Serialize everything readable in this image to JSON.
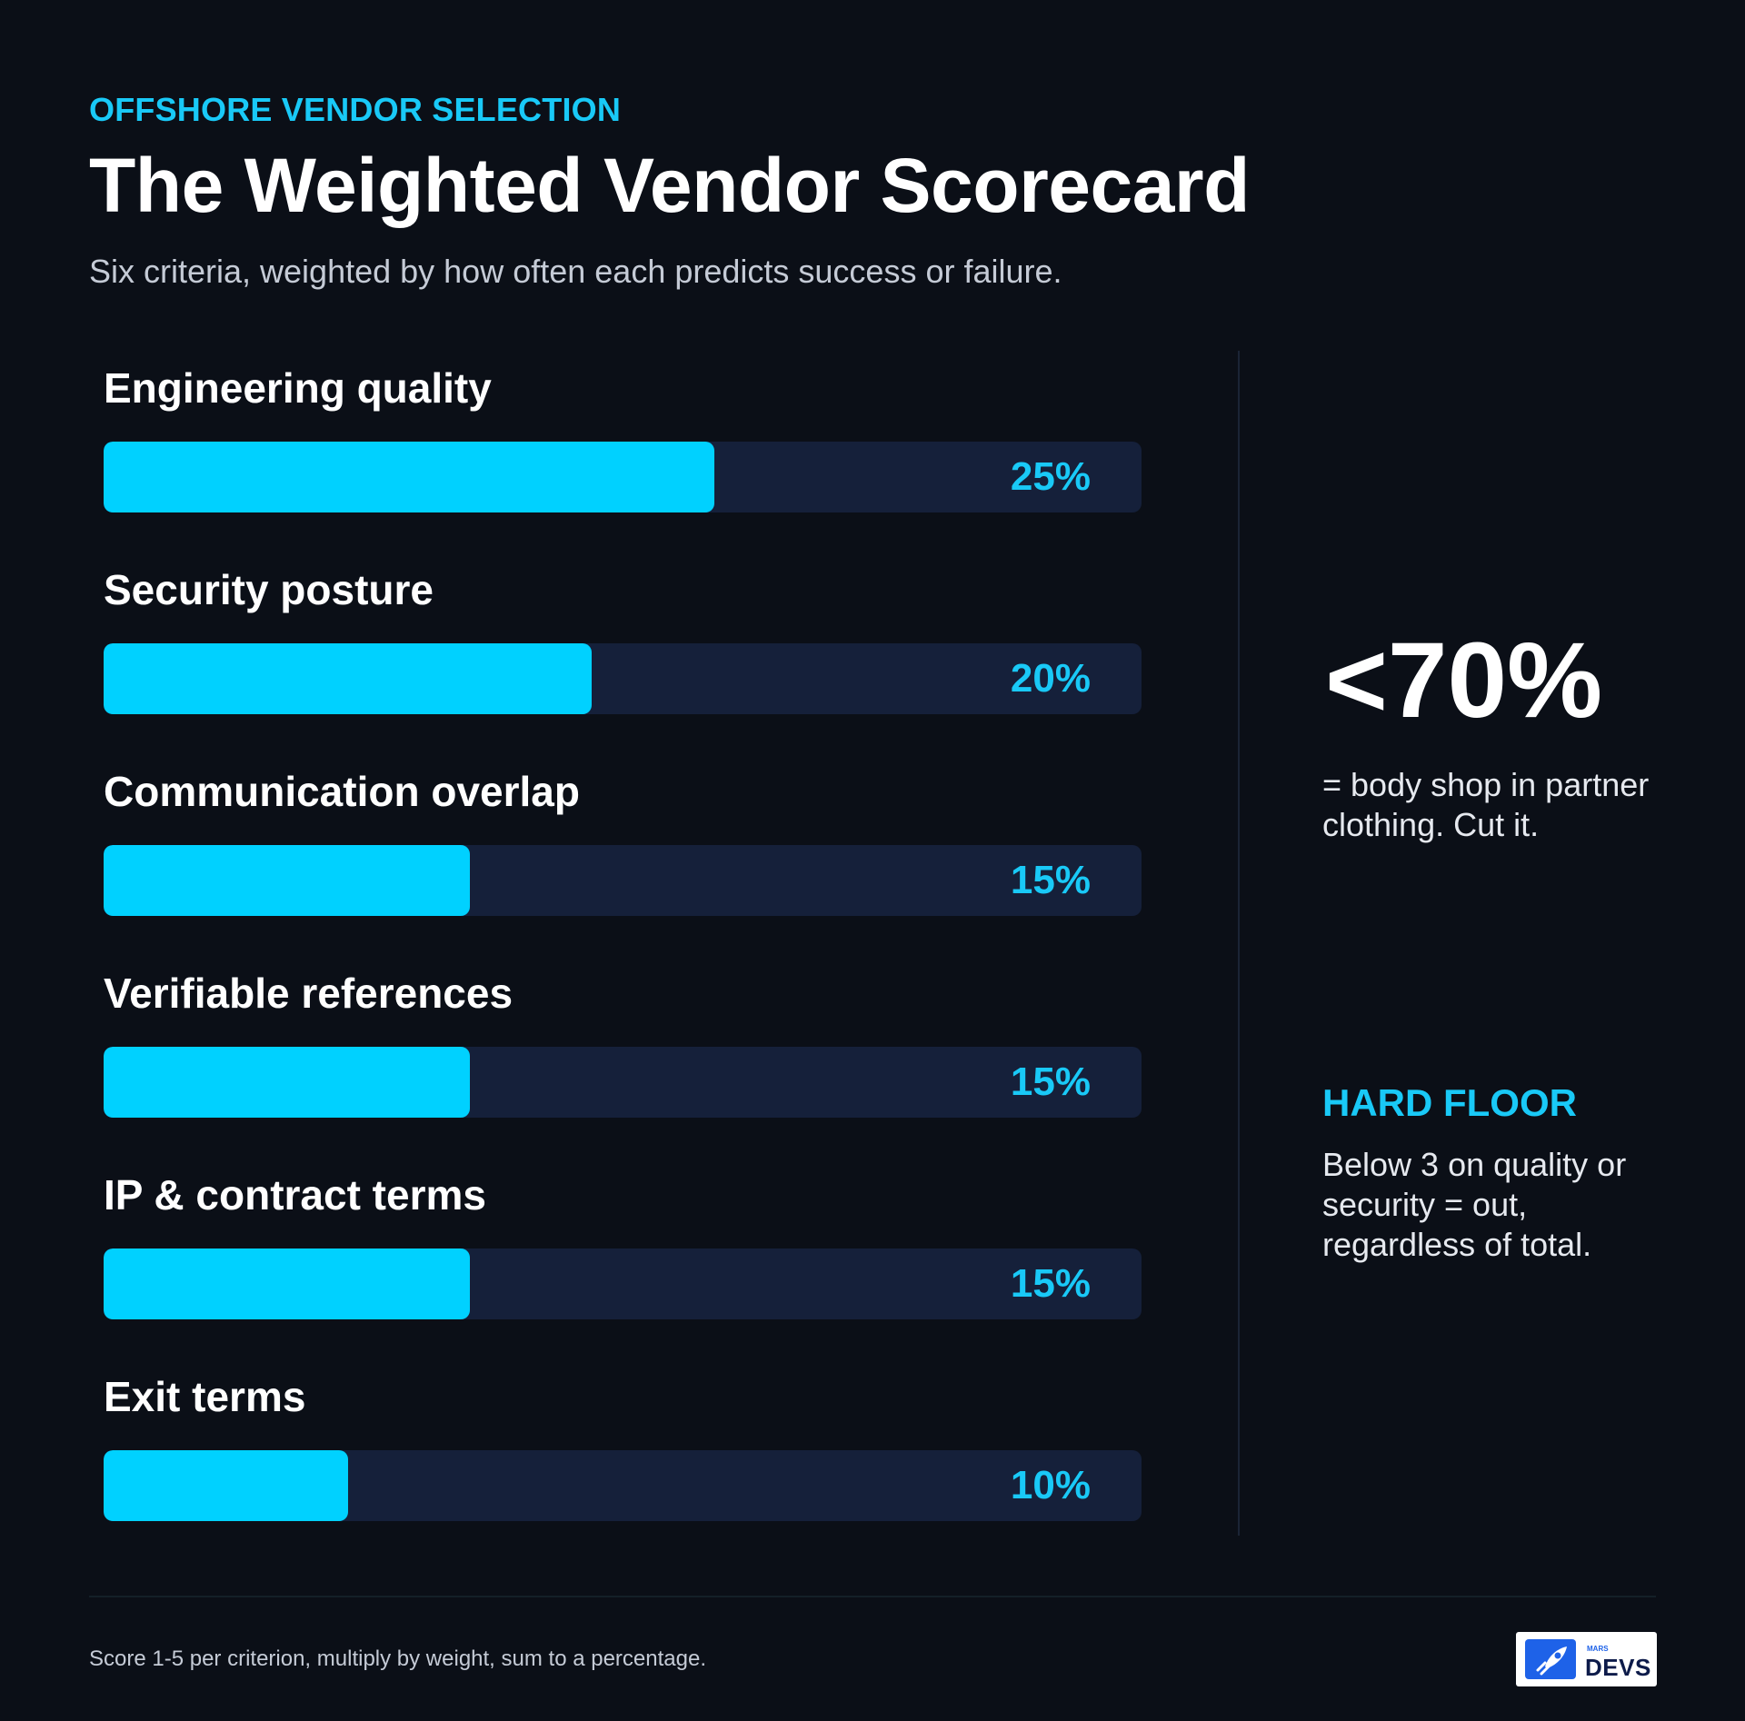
{
  "header": {
    "eyebrow": "OFFSHORE VENDOR SELECTION",
    "title": "The Weighted Vendor Scorecard",
    "subtitle": "Six criteria, weighted by how often each predicts success or failure."
  },
  "chart_data": {
    "type": "bar",
    "orientation": "horizontal",
    "categories": [
      "Engineering quality",
      "Security posture",
      "Communication overlap",
      "Verifiable references",
      "IP & contract terms",
      "Exit terms"
    ],
    "values": [
      25,
      20,
      15,
      15,
      15,
      10
    ],
    "value_labels": [
      "25%",
      "20%",
      "15%",
      "15%",
      "15%",
      "10%"
    ],
    "unit": "%",
    "xlim": [
      0,
      42.5
    ],
    "colors": {
      "fill": "#00d1ff",
      "track": "#15203a",
      "value_text": "#19c9f7"
    }
  },
  "sidebar": {
    "threshold": "<70%",
    "threshold_caption": "= body shop in partner clothing. Cut it.",
    "floor_heading": "HARD FLOOR",
    "floor_text": "Below 3 on quality or security = out, regardless of total."
  },
  "footer": {
    "note": "Score 1-5 per criterion, multiply by weight, sum to a percentage.",
    "logo_small": "MARS",
    "logo_word": "DEVS",
    "logo_icon": "rocket-icon"
  },
  "colors": {
    "background": "#0b0f17",
    "accent": "#19c9f7",
    "text": "#ffffff",
    "muted": "#c5cbd6"
  }
}
